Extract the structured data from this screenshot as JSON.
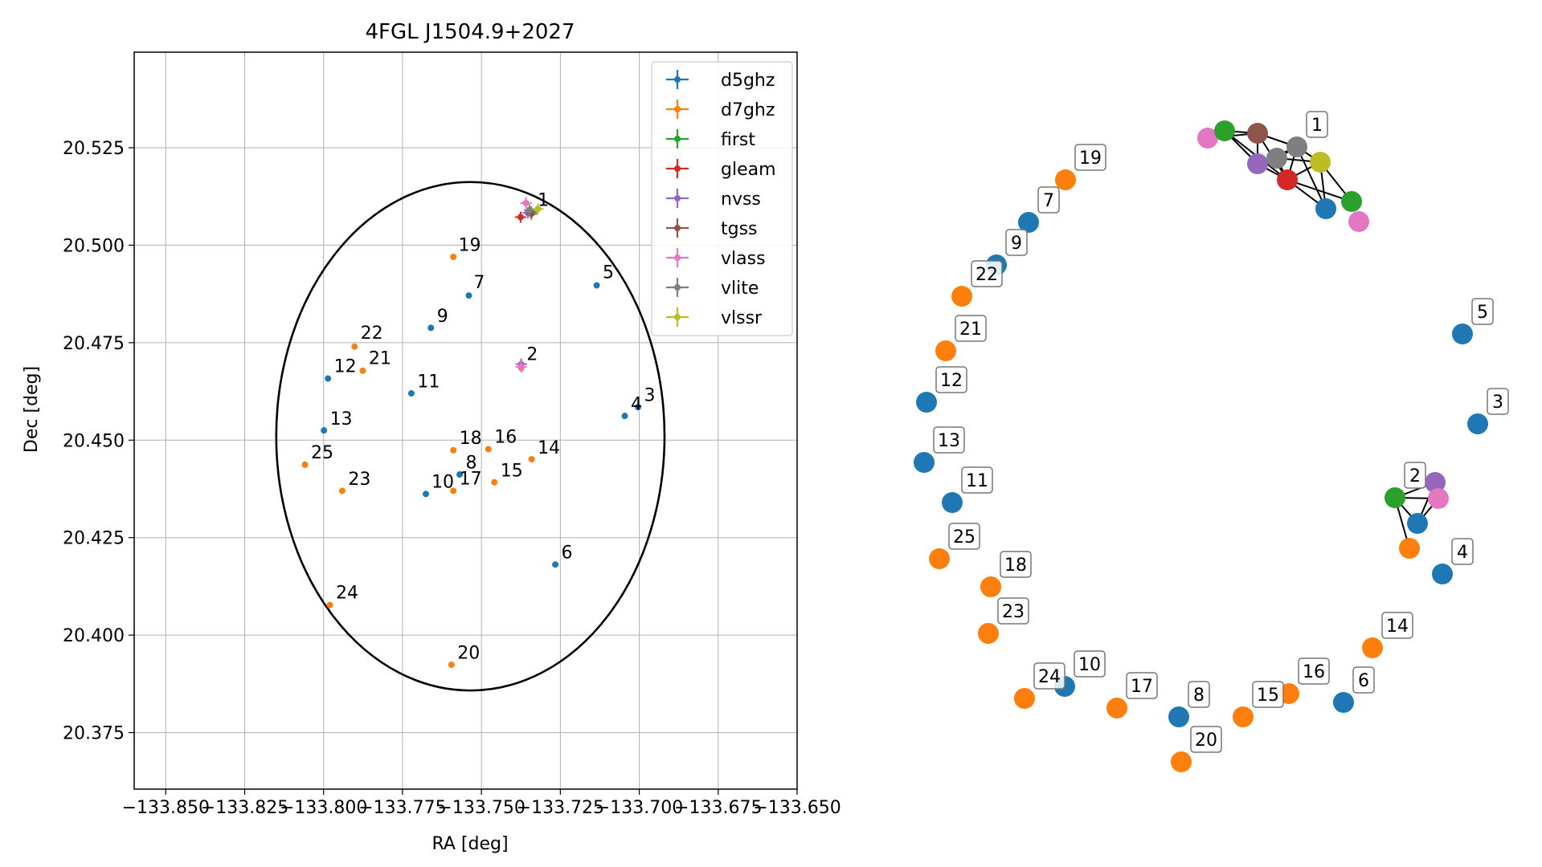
{
  "colors": {
    "d5ghz": "#1f77b4",
    "d7ghz": "#ff7f0e",
    "first": "#2ca02c",
    "gleam": "#d62728",
    "nvss": "#9467bd",
    "tgss": "#8c564b",
    "vlass": "#e377c2",
    "vlite": "#7f7f7f",
    "vlssr": "#bcbd22"
  },
  "chart_data": [
    {
      "type": "scatter",
      "title": "4FGL J1504.9+2027",
      "xlabel": "RA [deg]",
      "ylabel": "Dec [deg]",
      "xlim": [
        -133.86,
        -133.65
      ],
      "ylim": [
        20.3605,
        20.5495
      ],
      "xticks": [
        -133.85,
        -133.825,
        -133.8,
        -133.775,
        -133.75,
        -133.725,
        -133.7,
        -133.675,
        -133.65
      ],
      "xtick_labels": [
        "−133.850",
        "−133.825",
        "−133.800",
        "−133.775",
        "−133.750",
        "−133.725",
        "−133.700",
        "−133.675",
        "−133.650"
      ],
      "yticks": [
        20.375,
        20.4,
        20.425,
        20.45,
        20.475,
        20.5,
        20.525
      ],
      "ytick_labels": [
        "20.375",
        "20.400",
        "20.425",
        "20.450",
        "20.475",
        "20.500",
        "20.525"
      ],
      "grid": true,
      "legend_position": "top-right",
      "legend": [
        "d5ghz",
        "d7ghz",
        "first",
        "gleam",
        "nvss",
        "tgss",
        "vlass",
        "vlite",
        "vlssr"
      ],
      "ellipse": {
        "center": [
          -133.7535,
          20.451
        ],
        "semi_axis_ra": 0.0615,
        "semi_axis_dec": 0.0652
      },
      "series": [
        {
          "name": "d5ghz",
          "points": [
            {
              "label": "4",
              "x": -133.7046,
              "y": 20.4562
            },
            {
              "label": "3",
              "x": -133.7004,
              "y": 20.4585
            },
            {
              "label": "5",
              "x": -133.7135,
              "y": 20.4897
            },
            {
              "label": "6",
              "x": -133.7266,
              "y": 20.4181
            },
            {
              "label": "7",
              "x": -133.754,
              "y": 20.4871
            },
            {
              "label": "9",
              "x": -133.766,
              "y": 20.4788
            },
            {
              "label": "11",
              "x": -133.7722,
              "y": 20.462
            },
            {
              "label": "12",
              "x": -133.7986,
              "y": 20.4658
            },
            {
              "label": "13",
              "x": -133.7999,
              "y": 20.4525
            },
            {
              "label": "8",
              "x": -133.7569,
              "y": 20.4412
            },
            {
              "label": "10",
              "x": -133.7676,
              "y": 20.4362
            }
          ]
        },
        {
          "name": "d7ghz",
          "points": [
            {
              "label": "19",
              "x": -133.7589,
              "y": 20.497
            },
            {
              "label": "22",
              "x": -133.7902,
              "y": 20.474
            },
            {
              "label": "21",
              "x": -133.7876,
              "y": 20.4678
            },
            {
              "label": "25",
              "x": -133.8059,
              "y": 20.4437
            },
            {
              "label": "23",
              "x": -133.7941,
              "y": 20.437
            },
            {
              "label": "18",
              "x": -133.7589,
              "y": 20.4474
            },
            {
              "label": "16",
              "x": -133.7478,
              "y": 20.4477
            },
            {
              "label": "14",
              "x": -133.7341,
              "y": 20.4451
            },
            {
              "label": "15",
              "x": -133.7459,
              "y": 20.4392
            },
            {
              "label": "17",
              "x": -133.7589,
              "y": 20.437
            },
            {
              "label": "24",
              "x": -133.798,
              "y": 20.4077
            },
            {
              "label": "20",
              "x": -133.7595,
              "y": 20.3924
            },
            {
              "label": "2",
              "x": -133.7374,
              "y": 20.4685
            }
          ]
        },
        {
          "name": "first",
          "points": [
            {
              "x": -133.7342,
              "y": 20.5085
            }
          ]
        },
        {
          "name": "gleam",
          "points": [
            {
              "x": -133.7376,
              "y": 20.5072
            }
          ]
        },
        {
          "name": "nvss",
          "points": [
            {
              "x": -133.7374,
              "y": 20.4695
            },
            {
              "x": -133.7353,
              "y": 20.5083
            }
          ]
        },
        {
          "name": "tgss",
          "points": [
            {
              "x": -133.7342,
              "y": 20.508
            }
          ]
        },
        {
          "name": "vlass",
          "points": [
            {
              "x": -133.7359,
              "y": 20.5108
            },
            {
              "x": -133.7374,
              "y": 20.4688
            }
          ]
        },
        {
          "name": "vlite",
          "points": [
            {
              "x": -133.7348,
              "y": 20.509
            }
          ]
        },
        {
          "name": "vlssr",
          "points": [
            {
              "x": -133.7321,
              "y": 20.5093
            }
          ]
        }
      ],
      "point_labels": [
        {
          "text": "1",
          "x": -133.7322,
          "y": 20.5101
        },
        {
          "text": "19",
          "x": -133.7573,
          "y": 20.4985
        },
        {
          "text": "5",
          "x": -133.7116,
          "y": 20.4915
        },
        {
          "text": "7",
          "x": -133.7525,
          "y": 20.489
        },
        {
          "text": "9",
          "x": -133.7641,
          "y": 20.4803
        },
        {
          "text": "22",
          "x": -133.7883,
          "y": 20.476
        },
        {
          "text": "2",
          "x": -133.7357,
          "y": 20.4705
        },
        {
          "text": "12",
          "x": -133.7967,
          "y": 20.4675
        },
        {
          "text": "21",
          "x": -133.7857,
          "y": 20.4695
        },
        {
          "text": "11",
          "x": -133.7703,
          "y": 20.4635
        },
        {
          "text": "4",
          "x": -133.7027,
          "y": 20.4578
        },
        {
          "text": "3",
          "x": -133.6985,
          "y": 20.46
        },
        {
          "text": "13",
          "x": -133.798,
          "y": 20.454
        },
        {
          "text": "25",
          "x": -133.804,
          "y": 20.4453
        },
        {
          "text": "18",
          "x": -133.757,
          "y": 20.449
        },
        {
          "text": "16",
          "x": -133.7459,
          "y": 20.4493
        },
        {
          "text": "14",
          "x": -133.7322,
          "y": 20.4466
        },
        {
          "text": "8",
          "x": -133.755,
          "y": 20.4427
        },
        {
          "text": "15",
          "x": -133.744,
          "y": 20.4407
        },
        {
          "text": "23",
          "x": -133.7922,
          "y": 20.4385
        },
        {
          "text": "10",
          "x": -133.7658,
          "y": 20.4378
        },
        {
          "text": "17",
          "x": -133.757,
          "y": 20.4386
        },
        {
          "text": "6",
          "x": -133.7247,
          "y": 20.4197
        },
        {
          "text": "24",
          "x": -133.7961,
          "y": 20.4094
        },
        {
          "text": "20",
          "x": -133.7576,
          "y": 20.394
        }
      ]
    },
    {
      "type": "network",
      "nodes": [
        {
          "color": "d7ghz",
          "label": "19"
        },
        {
          "color": "d5ghz",
          "label": "7"
        },
        {
          "color": "d5ghz",
          "label": "9"
        },
        {
          "color": "d7ghz",
          "label": "22"
        },
        {
          "color": "d7ghz",
          "label": "21"
        },
        {
          "color": "d5ghz",
          "label": "12"
        },
        {
          "color": "d5ghz",
          "label": "13"
        },
        {
          "color": "d5ghz",
          "label": "11"
        },
        {
          "color": "d7ghz",
          "label": "25"
        },
        {
          "color": "d7ghz",
          "label": "18"
        },
        {
          "color": "d7ghz",
          "label": "23"
        },
        {
          "color": "d7ghz",
          "label": "24"
        },
        {
          "color": "d5ghz",
          "label": "10"
        },
        {
          "color": "d7ghz",
          "label": "17"
        },
        {
          "color": "d5ghz",
          "label": "8"
        },
        {
          "color": "d7ghz",
          "label": "20"
        },
        {
          "color": "d7ghz",
          "label": "15"
        },
        {
          "color": "d7ghz",
          "label": "16"
        },
        {
          "color": "d5ghz",
          "label": "6"
        },
        {
          "color": "d7ghz",
          "label": "14"
        },
        {
          "color": "d5ghz",
          "label": "4"
        },
        {
          "color": "d5ghz",
          "label": "3"
        },
        {
          "color": "d5ghz",
          "label": "5"
        },
        {
          "color": "vlass",
          "label": ""
        },
        {
          "color": "first",
          "label": ""
        },
        {
          "color": "tgss",
          "label": ""
        },
        {
          "color": "nvss",
          "label": ""
        },
        {
          "color": "vlite",
          "label": ""
        },
        {
          "color": "vlite",
          "label": "1"
        },
        {
          "color": "gleam",
          "label": ""
        },
        {
          "color": "vlssr",
          "label": ""
        },
        {
          "color": "d5ghz",
          "label": ""
        },
        {
          "color": "first",
          "label": ""
        },
        {
          "color": "vlass",
          "label": ""
        },
        {
          "color": "nvss",
          "label": ""
        },
        {
          "color": "vlass",
          "label": ""
        },
        {
          "color": "first",
          "label": "2"
        },
        {
          "color": "d5ghz",
          "label": ""
        },
        {
          "color": "d7ghz",
          "label": ""
        }
      ]
    }
  ]
}
